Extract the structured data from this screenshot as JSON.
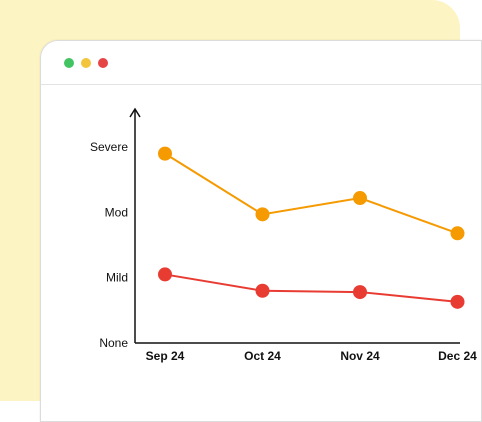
{
  "window": {
    "controls": [
      {
        "name": "green-dot",
        "color": "#43c463"
      },
      {
        "name": "yellow-dot",
        "color": "#f2c53d"
      },
      {
        "name": "red-dot",
        "color": "#e64545"
      }
    ]
  },
  "chart_data": {
    "type": "line",
    "title": "",
    "xlabel": "",
    "ylabel": "",
    "categories": [
      "Sep 24",
      "Oct 24",
      "Nov 24",
      "Dec 24"
    ],
    "y_categories": [
      "None",
      "Mild",
      "Mod",
      "Severe"
    ],
    "ylim": [
      0,
      3
    ],
    "grid": false,
    "series": [
      {
        "color": "#f59a00",
        "values": [
          2.9,
          1.97,
          2.22,
          1.68
        ]
      },
      {
        "color": "#e83c33",
        "values": [
          1.05,
          0.8,
          0.78,
          0.63
        ]
      }
    ]
  }
}
